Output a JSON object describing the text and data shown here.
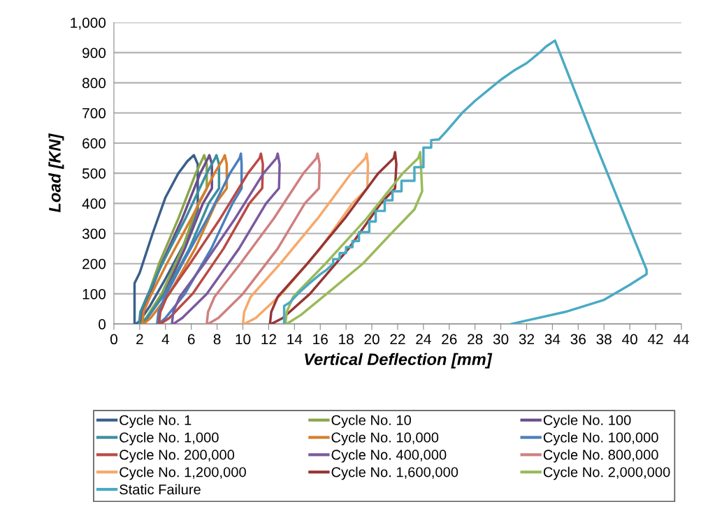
{
  "chart_data": {
    "type": "line",
    "xlabel": "Vertical Deflection [mm]",
    "ylabel": "Load [KN]",
    "xlim": [
      0,
      44
    ],
    "xticks": [
      0,
      2,
      4,
      6,
      8,
      10,
      12,
      14,
      16,
      18,
      20,
      22,
      24,
      26,
      28,
      30,
      32,
      34,
      36,
      38,
      40,
      42,
      44
    ],
    "ylim": [
      0,
      1000
    ],
    "yticks": [
      0,
      100,
      200,
      300,
      400,
      500,
      600,
      700,
      800,
      {
        "value": 900,
        "label": "900"
      },
      {
        "value": 1000,
        "label": "1,000"
      }
    ],
    "grid": "y",
    "legend": "bottom",
    "marker": "none",
    "line_style": "solid",
    "series": [
      {
        "name": "Cycle No. 1",
        "color": "#3b5f8c",
        "x": [
          1.6,
          1.6,
          2.0,
          3.0,
          4.0,
          5.0,
          5.7,
          6.2,
          6.5,
          6.5,
          5.5,
          4.0,
          2.8,
          2.0,
          1.7
        ],
        "values": [
          0,
          135,
          170,
          300,
          420,
          500,
          540,
          560,
          530,
          380,
          270,
          150,
          60,
          10,
          0
        ]
      },
      {
        "name": "Cycle No. 10",
        "color": "#8aa64a",
        "x": [
          2.0,
          2.1,
          2.6,
          3.5,
          5.0,
          6.35,
          6.9,
          7.0,
          7.2,
          7.2,
          6.55,
          5.3,
          3.7,
          2.5,
          2.1
        ],
        "values": [
          0,
          40,
          90,
          200,
          350,
          500,
          550,
          560,
          530,
          450,
          400,
          250,
          100,
          20,
          0
        ]
      },
      {
        "name": "Cycle No. 100",
        "color": "#6b4d8a",
        "x": [
          2.1,
          2.2,
          2.7,
          3.7,
          5.3,
          6.7,
          7.3,
          7.4,
          7.6,
          7.6,
          6.9,
          5.5,
          3.9,
          2.6,
          2.2
        ],
        "values": [
          0,
          40,
          90,
          200,
          350,
          500,
          550,
          560,
          530,
          450,
          400,
          250,
          100,
          20,
          0
        ]
      },
      {
        "name": "Cycle No. 1,000",
        "color": "#3a8fa0",
        "x": [
          1.95,
          2.05,
          2.55,
          3.75,
          5.55,
          7.2,
          7.85,
          7.95,
          8.15,
          8.15,
          7.35,
          5.85,
          3.95,
          2.55,
          2.05
        ],
        "values": [
          0,
          40,
          90,
          200,
          350,
          500,
          550,
          560,
          530,
          450,
          400,
          250,
          100,
          20,
          0
        ]
      },
      {
        "name": "Cycle No. 10,000",
        "color": "#d57f2e",
        "x": [
          2.2,
          2.3,
          2.8,
          4.1,
          6.0,
          7.8,
          8.5,
          8.6,
          8.75,
          8.75,
          7.9,
          6.3,
          4.3,
          2.85,
          2.3
        ],
        "values": [
          0,
          40,
          90,
          200,
          350,
          500,
          550,
          560,
          530,
          450,
          400,
          250,
          100,
          20,
          0
        ]
      },
      {
        "name": "Cycle No. 100,000",
        "color": "#4a7fbd",
        "x": [
          3.35,
          3.45,
          3.95,
          5.3,
          7.25,
          9.0,
          9.75,
          9.85,
          9.9,
          9.9,
          9.2,
          7.55,
          5.5,
          4.0,
          3.45
        ],
        "values": [
          0,
          40,
          90,
          200,
          350,
          500,
          550,
          565,
          530,
          450,
          400,
          250,
          100,
          20,
          0
        ]
      },
      {
        "name": "Cycle No. 200,000",
        "color": "#b94a45",
        "x": [
          3.5,
          3.6,
          4.1,
          5.9,
          8.25,
          10.4,
          11.3,
          11.4,
          11.55,
          11.5,
          10.5,
          8.5,
          6.1,
          4.3,
          3.6
        ],
        "values": [
          0,
          40,
          90,
          200,
          350,
          500,
          550,
          565,
          530,
          450,
          400,
          250,
          100,
          20,
          0
        ]
      },
      {
        "name": "Cycle No. 400,000",
        "color": "#7a5a9e",
        "x": [
          4.5,
          4.6,
          5.1,
          7.0,
          9.4,
          11.6,
          12.6,
          12.7,
          12.85,
          12.8,
          11.8,
          9.7,
          7.2,
          5.3,
          4.6
        ],
        "values": [
          0,
          40,
          90,
          200,
          350,
          500,
          550,
          565,
          530,
          450,
          400,
          250,
          100,
          20,
          0
        ]
      },
      {
        "name": "Cycle No. 800,000",
        "color": "#d08080",
        "x": [
          7.2,
          7.3,
          7.8,
          9.8,
          12.4,
          14.7,
          15.7,
          15.8,
          15.95,
          15.9,
          14.8,
          12.7,
          10.0,
          8.1,
          7.3
        ],
        "values": [
          0,
          40,
          90,
          200,
          350,
          500,
          550,
          565,
          530,
          450,
          400,
          250,
          100,
          20,
          0
        ]
      },
      {
        "name": "Cycle No. 1,200,000",
        "color": "#f7a86a",
        "x": [
          10.0,
          10.1,
          10.6,
          12.9,
          15.8,
          18.4,
          19.5,
          19.6,
          19.7,
          19.65,
          18.5,
          16.0,
          13.0,
          11.0,
          10.1
        ],
        "values": [
          0,
          40,
          90,
          200,
          350,
          500,
          550,
          565,
          530,
          450,
          400,
          250,
          100,
          20,
          0
        ]
      },
      {
        "name": "Cycle No. 1,600,000",
        "color": "#963535",
        "x": [
          12.1,
          12.2,
          12.7,
          15.0,
          17.9,
          20.5,
          21.7,
          21.8,
          21.9,
          21.8,
          20.7,
          18.2,
          15.2,
          13.1,
          12.2
        ],
        "values": [
          0,
          40,
          90,
          200,
          350,
          500,
          550,
          570,
          530,
          450,
          400,
          250,
          100,
          20,
          0
        ]
      },
      {
        "name": "Cycle No. 2,000,000",
        "color": "#9aba5a",
        "x": [
          13.3,
          13.4,
          13.9,
          16.4,
          19.6,
          22.4,
          23.6,
          23.75,
          23.8,
          23.9,
          23.3,
          21.5,
          19.3,
          16.5,
          14.5,
          13.4
        ],
        "values": [
          0,
          40,
          90,
          200,
          350,
          500,
          550,
          570,
          530,
          440,
          380,
          300,
          200,
          100,
          30,
          0
        ]
      },
      {
        "name": "Static Failure",
        "color": "#4aaac4",
        "x": [
          13.2,
          13.2,
          13.6,
          14.5,
          15.3,
          16.0,
          16.5,
          17.0,
          17.0,
          17.5,
          17.5,
          18.0,
          18.0,
          18.5,
          18.5,
          19.0,
          19.0,
          19.8,
          19.8,
          20.3,
          20.3,
          21.0,
          21.0,
          21.6,
          21.6,
          22.3,
          22.3,
          23.3,
          23.3,
          24.0,
          24.0,
          24.6,
          24.6,
          25.2,
          25.8,
          27.0,
          28.0,
          29.0,
          30.0,
          31.0,
          32.0,
          33.0,
          33.5,
          34.2,
          37.6,
          41.3,
          41.3,
          40.0,
          38.0,
          35.0,
          30.8
        ],
        "values": [
          0,
          60,
          70,
          110,
          140,
          165,
          180,
          200,
          215,
          215,
          235,
          235,
          255,
          255,
          275,
          275,
          305,
          305,
          340,
          340,
          375,
          375,
          410,
          410,
          440,
          440,
          475,
          475,
          520,
          520,
          585,
          585,
          610,
          612,
          640,
          700,
          740,
          775,
          810,
          840,
          865,
          900,
          920,
          940,
          570,
          180,
          165,
          130,
          80,
          40,
          0
        ]
      }
    ]
  }
}
